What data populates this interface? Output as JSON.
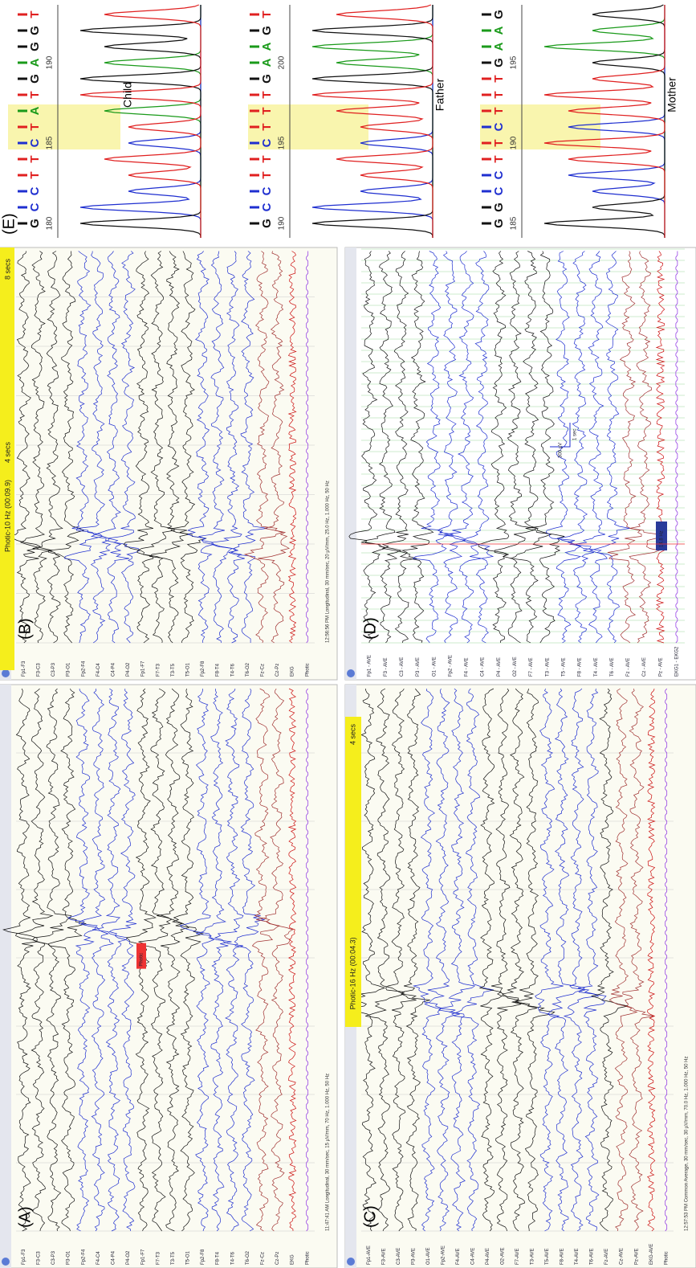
{
  "panels": [
    {
      "label": "(A)",
      "channels": [
        "Fp1-F3",
        "F3-C3",
        "C3-P3",
        "P3-O1",
        "Fp2-F4",
        "F4-C4",
        "C4-P4",
        "P4-O2",
        "Fp1-F7",
        "F7-T3",
        "T3-T5",
        "T5-O1",
        "Fp2-F8",
        "F8-T4",
        "T4-T6",
        "T6-O2",
        "Fz-Cz",
        "Cz-Pz",
        "EKG",
        "Photic"
      ],
      "footer": "11:47:41 AM Longitudinal, 30 mm/sec, 15 µV/mm, 70 Hz, 1.000 Hz, 50 Hz",
      "marker": "Photic"
    },
    {
      "label": "(B)",
      "channels": [
        "Fp1-F3",
        "F3-C3",
        "C3-P3",
        "P3-O1",
        "Fp2-F4",
        "F4-C4",
        "C4-P4",
        "P4-O2",
        "Fp1-F7",
        "F7-T3",
        "T3-T5",
        "T5-O1",
        "Fp2-F8",
        "F8-T4",
        "T4-T6",
        "T6-O2",
        "Fz-Cz",
        "Cz-Pz",
        "EKG",
        "Photic"
      ],
      "footer": "12:56:56 PM Longitudinal, 30 mm/sec, 20 µV/mm, 25.0 Hz, 1.000 Hz, 50 Hz",
      "photic": "Photic-10 Hz (00:09.9)",
      "secs": [
        "4 secs",
        "8 secs"
      ]
    },
    {
      "label": "(C)",
      "channels": [
        "Fp1-AVE",
        "F3-AVE",
        "C3-AVE",
        "P3-AVE",
        "O1-AVE",
        "Fp2-AVE",
        "F4-AVE",
        "C4-AVE",
        "P4-AVE",
        "O2-AVE",
        "F7-AVE",
        "T3-AVE",
        "T5-AVE",
        "F8-AVE",
        "T4-AVE",
        "T6-AVE",
        "Fz-AVE",
        "Cz-AVE",
        "Pz-AVE",
        "EKG-AVE",
        "Photic"
      ],
      "footer": "12:57:53 PM Common Average, 30 mm/sec, 30 µV/mm, 70.0 Hz, 1.000 Hz, 50 Hz",
      "photic": "Photic-16 Hz (00:04.3)",
      "secs": [
        "4 secs"
      ]
    },
    {
      "label": "(D)",
      "channels": [
        "Fp1 - AVE",
        "F3 - AVE",
        "C3 - AVE",
        "P3 - AVE",
        "O1 - AVE",
        "Fp2 - AVE",
        "F4 - AVE",
        "C4 - AVE",
        "P4 - AVE",
        "O2 - AVE",
        "F7 - AVE",
        "T3 - AVE",
        "T5 - AVE",
        "F8 - AVE",
        "T4 - AVE",
        "T6 - AVE",
        "Fz - AVE",
        "Cz - AVE",
        "Pz - AVE",
        "EKG1 - EKG2"
      ],
      "scale": [
        "300 µV",
        "1 sec"
      ],
      "freq": "14.8 Hz"
    }
  ],
  "sequencing": {
    "label": "(E)",
    "samples": [
      {
        "name": "Child",
        "positions": [
          180,
          185,
          190
        ],
        "bases": [
          "G",
          "C",
          "C",
          "T",
          "T",
          "C",
          "T",
          "A",
          "T",
          "G",
          "A",
          "G",
          "G",
          "T"
        ]
      },
      {
        "name": "Father",
        "positions": [
          190,
          195,
          200
        ],
        "bases": [
          "G",
          "C",
          "C",
          "T",
          "T",
          "C",
          "T",
          "T",
          "T",
          "G",
          "A",
          "A",
          "G",
          "T"
        ]
      },
      {
        "name": "Mother",
        "positions": [
          185,
          190,
          195
        ],
        "bases": [
          "G",
          "G",
          "C",
          "C",
          "T",
          "T",
          "C",
          "T",
          "T",
          "T",
          "G",
          "A",
          "A",
          "G"
        ]
      }
    ]
  }
}
